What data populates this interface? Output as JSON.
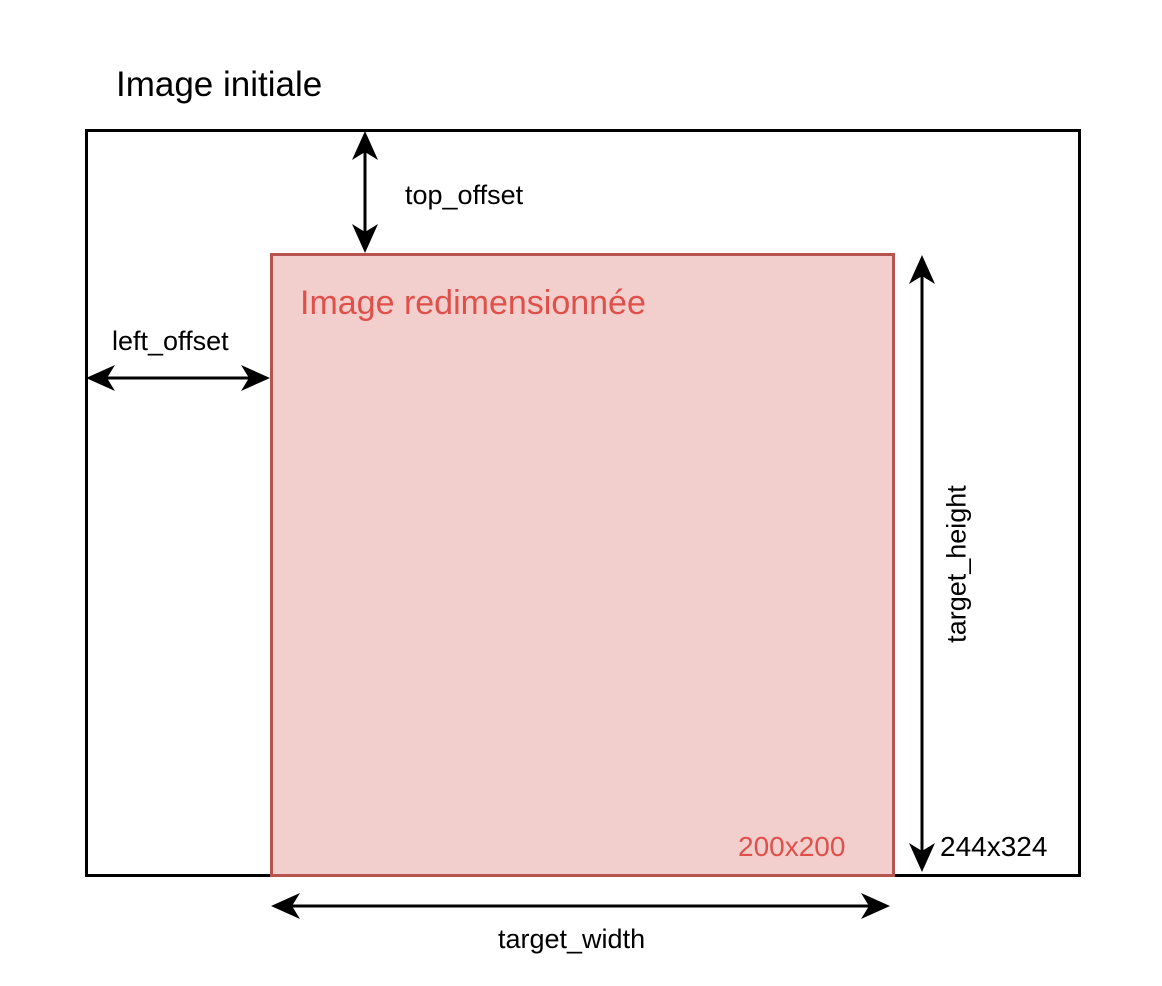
{
  "diagram": {
    "title": "Image initiale",
    "inner_title": "Image redimensionnée",
    "inner_size": "200x200",
    "outer_size": "244x324",
    "labels": {
      "top_offset": "top_offset",
      "left_offset": "left_offset",
      "target_height": "target_height",
      "target_width": "target_width"
    },
    "colors": {
      "outer_border": "#000000",
      "inner_fill": "#f2cfcd",
      "inner_border": "#b85450",
      "inner_text": "#e0504a",
      "arrow": "#000000"
    }
  }
}
